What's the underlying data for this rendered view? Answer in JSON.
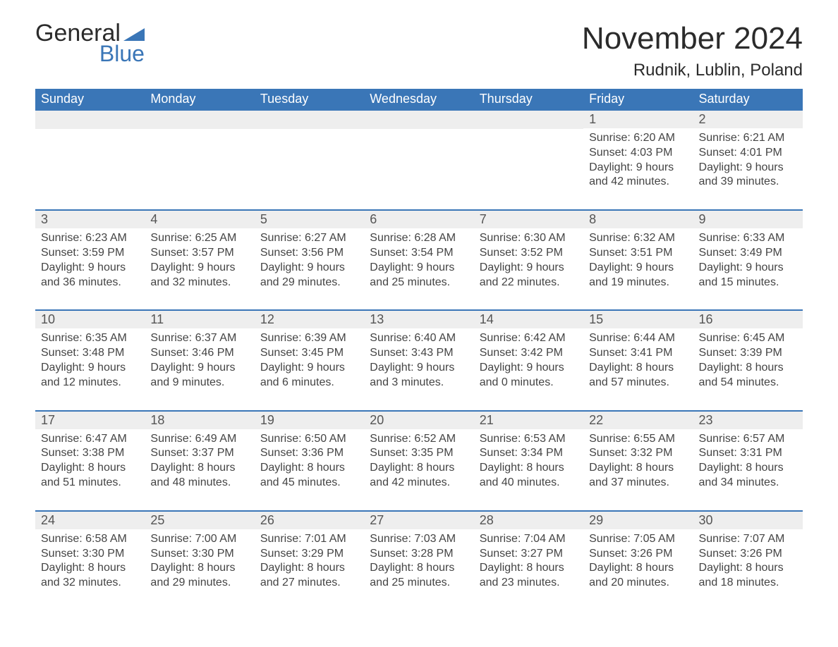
{
  "logo": {
    "word1": "General",
    "word2": "Blue"
  },
  "title": "November 2024",
  "location": "Rudnik, Lublin, Poland",
  "colors": {
    "header_bg": "#3a76b7",
    "header_text": "#ffffff",
    "day_head_bg": "#eeeeee",
    "day_head_text": "#555555",
    "body_text": "#444444",
    "border": "#3a76b7",
    "page_bg": "#ffffff",
    "logo_dark": "#2b2b2b",
    "logo_blue": "#3a76b7"
  },
  "fonts": {
    "title_size": 44,
    "location_size": 24,
    "header_size": 18,
    "body_size": 16
  },
  "dow": [
    "Sunday",
    "Monday",
    "Tuesday",
    "Wednesday",
    "Thursday",
    "Friday",
    "Saturday"
  ],
  "weeks": [
    [
      null,
      null,
      null,
      null,
      null,
      {
        "n": "1",
        "sr": "Sunrise: 6:20 AM",
        "ss": "Sunset: 4:03 PM",
        "d1": "Daylight: 9 hours",
        "d2": "and 42 minutes."
      },
      {
        "n": "2",
        "sr": "Sunrise: 6:21 AM",
        "ss": "Sunset: 4:01 PM",
        "d1": "Daylight: 9 hours",
        "d2": "and 39 minutes."
      }
    ],
    [
      {
        "n": "3",
        "sr": "Sunrise: 6:23 AM",
        "ss": "Sunset: 3:59 PM",
        "d1": "Daylight: 9 hours",
        "d2": "and 36 minutes."
      },
      {
        "n": "4",
        "sr": "Sunrise: 6:25 AM",
        "ss": "Sunset: 3:57 PM",
        "d1": "Daylight: 9 hours",
        "d2": "and 32 minutes."
      },
      {
        "n": "5",
        "sr": "Sunrise: 6:27 AM",
        "ss": "Sunset: 3:56 PM",
        "d1": "Daylight: 9 hours",
        "d2": "and 29 minutes."
      },
      {
        "n": "6",
        "sr": "Sunrise: 6:28 AM",
        "ss": "Sunset: 3:54 PM",
        "d1": "Daylight: 9 hours",
        "d2": "and 25 minutes."
      },
      {
        "n": "7",
        "sr": "Sunrise: 6:30 AM",
        "ss": "Sunset: 3:52 PM",
        "d1": "Daylight: 9 hours",
        "d2": "and 22 minutes."
      },
      {
        "n": "8",
        "sr": "Sunrise: 6:32 AM",
        "ss": "Sunset: 3:51 PM",
        "d1": "Daylight: 9 hours",
        "d2": "and 19 minutes."
      },
      {
        "n": "9",
        "sr": "Sunrise: 6:33 AM",
        "ss": "Sunset: 3:49 PM",
        "d1": "Daylight: 9 hours",
        "d2": "and 15 minutes."
      }
    ],
    [
      {
        "n": "10",
        "sr": "Sunrise: 6:35 AM",
        "ss": "Sunset: 3:48 PM",
        "d1": "Daylight: 9 hours",
        "d2": "and 12 minutes."
      },
      {
        "n": "11",
        "sr": "Sunrise: 6:37 AM",
        "ss": "Sunset: 3:46 PM",
        "d1": "Daylight: 9 hours",
        "d2": "and 9 minutes."
      },
      {
        "n": "12",
        "sr": "Sunrise: 6:39 AM",
        "ss": "Sunset: 3:45 PM",
        "d1": "Daylight: 9 hours",
        "d2": "and 6 minutes."
      },
      {
        "n": "13",
        "sr": "Sunrise: 6:40 AM",
        "ss": "Sunset: 3:43 PM",
        "d1": "Daylight: 9 hours",
        "d2": "and 3 minutes."
      },
      {
        "n": "14",
        "sr": "Sunrise: 6:42 AM",
        "ss": "Sunset: 3:42 PM",
        "d1": "Daylight: 9 hours",
        "d2": "and 0 minutes."
      },
      {
        "n": "15",
        "sr": "Sunrise: 6:44 AM",
        "ss": "Sunset: 3:41 PM",
        "d1": "Daylight: 8 hours",
        "d2": "and 57 minutes."
      },
      {
        "n": "16",
        "sr": "Sunrise: 6:45 AM",
        "ss": "Sunset: 3:39 PM",
        "d1": "Daylight: 8 hours",
        "d2": "and 54 minutes."
      }
    ],
    [
      {
        "n": "17",
        "sr": "Sunrise: 6:47 AM",
        "ss": "Sunset: 3:38 PM",
        "d1": "Daylight: 8 hours",
        "d2": "and 51 minutes."
      },
      {
        "n": "18",
        "sr": "Sunrise: 6:49 AM",
        "ss": "Sunset: 3:37 PM",
        "d1": "Daylight: 8 hours",
        "d2": "and 48 minutes."
      },
      {
        "n": "19",
        "sr": "Sunrise: 6:50 AM",
        "ss": "Sunset: 3:36 PM",
        "d1": "Daylight: 8 hours",
        "d2": "and 45 minutes."
      },
      {
        "n": "20",
        "sr": "Sunrise: 6:52 AM",
        "ss": "Sunset: 3:35 PM",
        "d1": "Daylight: 8 hours",
        "d2": "and 42 minutes."
      },
      {
        "n": "21",
        "sr": "Sunrise: 6:53 AM",
        "ss": "Sunset: 3:34 PM",
        "d1": "Daylight: 8 hours",
        "d2": "and 40 minutes."
      },
      {
        "n": "22",
        "sr": "Sunrise: 6:55 AM",
        "ss": "Sunset: 3:32 PM",
        "d1": "Daylight: 8 hours",
        "d2": "and 37 minutes."
      },
      {
        "n": "23",
        "sr": "Sunrise: 6:57 AM",
        "ss": "Sunset: 3:31 PM",
        "d1": "Daylight: 8 hours",
        "d2": "and 34 minutes."
      }
    ],
    [
      {
        "n": "24",
        "sr": "Sunrise: 6:58 AM",
        "ss": "Sunset: 3:30 PM",
        "d1": "Daylight: 8 hours",
        "d2": "and 32 minutes."
      },
      {
        "n": "25",
        "sr": "Sunrise: 7:00 AM",
        "ss": "Sunset: 3:30 PM",
        "d1": "Daylight: 8 hours",
        "d2": "and 29 minutes."
      },
      {
        "n": "26",
        "sr": "Sunrise: 7:01 AM",
        "ss": "Sunset: 3:29 PM",
        "d1": "Daylight: 8 hours",
        "d2": "and 27 minutes."
      },
      {
        "n": "27",
        "sr": "Sunrise: 7:03 AM",
        "ss": "Sunset: 3:28 PM",
        "d1": "Daylight: 8 hours",
        "d2": "and 25 minutes."
      },
      {
        "n": "28",
        "sr": "Sunrise: 7:04 AM",
        "ss": "Sunset: 3:27 PM",
        "d1": "Daylight: 8 hours",
        "d2": "and 23 minutes."
      },
      {
        "n": "29",
        "sr": "Sunrise: 7:05 AM",
        "ss": "Sunset: 3:26 PM",
        "d1": "Daylight: 8 hours",
        "d2": "and 20 minutes."
      },
      {
        "n": "30",
        "sr": "Sunrise: 7:07 AM",
        "ss": "Sunset: 3:26 PM",
        "d1": "Daylight: 8 hours",
        "d2": "and 18 minutes."
      }
    ]
  ]
}
